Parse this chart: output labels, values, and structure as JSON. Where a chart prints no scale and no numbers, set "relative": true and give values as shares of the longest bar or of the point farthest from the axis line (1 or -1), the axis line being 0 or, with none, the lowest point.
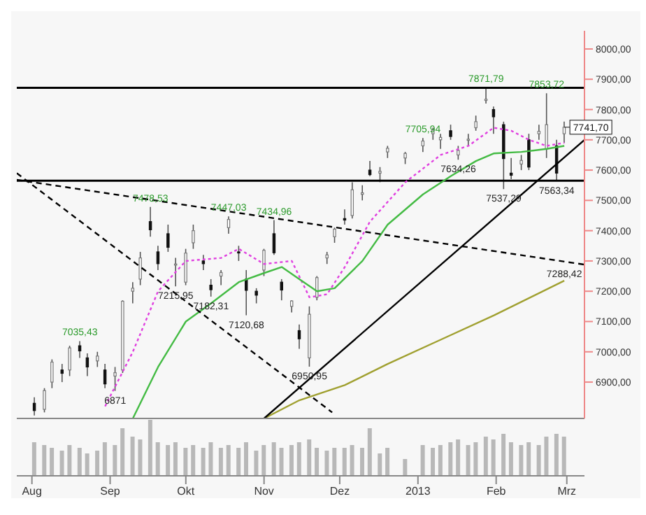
{
  "chart_data": [
    {
      "type": "candlestick",
      "x": [
        "2012-08-02",
        "2012-08-06",
        "2012-08-09",
        "2012-08-13",
        "2012-08-16",
        "2012-08-20",
        "2012-08-23",
        "2012-08-27",
        "2012-08-30",
        "2012-09-03",
        "2012-09-06",
        "2012-09-10",
        "2012-09-13",
        "2012-09-17",
        "2012-09-20",
        "2012-09-24",
        "2012-09-27",
        "2012-10-01",
        "2012-10-04",
        "2012-10-08",
        "2012-10-11",
        "2012-10-15",
        "2012-10-18",
        "2012-10-22",
        "2012-10-25",
        "2012-10-29",
        "2012-11-01",
        "2012-11-05",
        "2012-11-08",
        "2012-11-12",
        "2012-11-15",
        "2012-11-19",
        "2012-11-22",
        "2012-11-26",
        "2012-11-29",
        "2012-12-03",
        "2012-12-06",
        "2012-12-10",
        "2012-12-13",
        "2012-12-17",
        "2012-12-20",
        "2012-12-27",
        "2013-01-03",
        "2013-01-07",
        "2013-01-10",
        "2013-01-14",
        "2013-01-17",
        "2013-01-21",
        "2013-01-24",
        "2013-01-28",
        "2013-01-31",
        "2013-02-04",
        "2013-02-07",
        "2013-02-11",
        "2013-02-14",
        "2013-02-18",
        "2013-02-21",
        "2013-02-25",
        "2013-02-28"
      ],
      "ohlc": [
        [
          6830,
          6850,
          6790,
          6806
        ],
        [
          6810,
          6880,
          6800,
          6872
        ],
        [
          6900,
          6975,
          6880,
          6966
        ],
        [
          6940,
          6960,
          6900,
          6929
        ],
        [
          6940,
          7020,
          6920,
          7013
        ],
        [
          7020,
          7035.43,
          6980,
          7003
        ],
        [
          6980,
          6995,
          6920,
          6950
        ],
        [
          6970,
          7000,
          6950,
          6986
        ],
        [
          6940,
          6960,
          6880,
          6894
        ],
        [
          6920,
          6950,
          6871,
          6931
        ],
        [
          6940,
          7170,
          6930,
          7167
        ],
        [
          7200,
          7230,
          7160,
          7210
        ],
        [
          7240,
          7330,
          7220,
          7310
        ],
        [
          7430,
          7478.53,
          7380,
          7403
        ],
        [
          7330,
          7350,
          7270,
          7291
        ],
        [
          7390,
          7420,
          7330,
          7345
        ],
        [
          7290,
          7310,
          7215.95,
          7290
        ],
        [
          7230,
          7340,
          7220,
          7326
        ],
        [
          7360,
          7420,
          7340,
          7400
        ],
        [
          7300,
          7320,
          7270,
          7291
        ],
        [
          7220,
          7240,
          7182.31,
          7205
        ],
        [
          7250,
          7270,
          7220,
          7262
        ],
        [
          7410,
          7447.03,
          7390,
          7437
        ],
        [
          7330,
          7350,
          7300,
          7328
        ],
        [
          7240,
          7270,
          7120.68,
          7203
        ],
        [
          7200,
          7210,
          7160,
          7187
        ],
        [
          7270,
          7340,
          7250,
          7335
        ],
        [
          7390,
          7434.96,
          7320,
          7327
        ],
        [
          7230,
          7240,
          7170,
          7204
        ],
        [
          7150,
          7170,
          7130,
          7168
        ],
        [
          7070,
          7090,
          7010,
          7043
        ],
        [
          6980,
          7150,
          6950.95,
          7124
        ],
        [
          7180,
          7250,
          7170,
          7245
        ],
        [
          7310,
          7330,
          7290,
          7320
        ],
        [
          7380,
          7410,
          7360,
          7405
        ],
        [
          7440,
          7470,
          7420,
          7435
        ],
        [
          7450,
          7560,
          7440,
          7535
        ],
        [
          7520,
          7550,
          7500,
          7525
        ],
        [
          7600,
          7630,
          7580,
          7585
        ],
        [
          7590,
          7610,
          7560,
          7596
        ],
        [
          7660,
          7680,
          7640,
          7672
        ],
        [
          7640,
          7660,
          7620,
          7655
        ],
        [
          7680,
          7705.94,
          7660,
          7696
        ],
        [
          7720,
          7740,
          7700,
          7732
        ],
        [
          7700,
          7720,
          7670,
          7708
        ],
        [
          7730,
          7750,
          7700,
          7711
        ],
        [
          7650,
          7680,
          7634.26,
          7665
        ],
        [
          7700,
          7720,
          7680,
          7702
        ],
        [
          7740,
          7780,
          7730,
          7760
        ],
        [
          7830,
          7871.79,
          7820,
          7834
        ],
        [
          7800,
          7810,
          7720,
          7776
        ],
        [
          7750,
          7760,
          7537.29,
          7638
        ],
        [
          7590,
          7640,
          7570,
          7583
        ],
        [
          7620,
          7650,
          7600,
          7632
        ],
        [
          7700,
          7720,
          7600,
          7610
        ],
        [
          7720,
          7750,
          7700,
          7728
        ],
        [
          7670,
          7853.72,
          7640,
          7750
        ],
        [
          7680,
          7700,
          7563.34,
          7590
        ],
        [
          7720,
          7760,
          7690,
          7741.7
        ]
      ],
      "series": [
        {
          "type": "line",
          "color": "#e040e0",
          "line_style": "dotted",
          "x": [
            "2012-08-30",
            "2012-09-10",
            "2012-09-20",
            "2012-10-01",
            "2012-10-15",
            "2012-10-22",
            "2012-11-01",
            "2012-11-12",
            "2012-11-19",
            "2012-11-26",
            "2012-12-03",
            "2012-12-13",
            "2012-12-27",
            "2013-01-10",
            "2013-01-21",
            "2013-01-31",
            "2013-02-07",
            "2013-02-14",
            "2013-02-21",
            "2013-02-28"
          ],
          "values": [
            6820,
            7000,
            7200,
            7300,
            7310,
            7340,
            7290,
            7300,
            7180,
            7190,
            7280,
            7430,
            7560,
            7650,
            7680,
            7740,
            7730,
            7700,
            7680,
            7690
          ]
        },
        {
          "type": "line",
          "color": "#44bb44",
          "line_style": "solid",
          "x": [
            "2012-09-10",
            "2012-09-20",
            "2012-10-01",
            "2012-10-11",
            "2012-10-22",
            "2012-11-01",
            "2012-11-08",
            "2012-11-15",
            "2012-11-22",
            "2012-11-29",
            "2012-12-10",
            "2012-12-20",
            "2013-01-03",
            "2013-01-14",
            "2013-01-24",
            "2013-01-31",
            "2013-02-11",
            "2013-02-21",
            "2013-02-28"
          ],
          "values": [
            6780,
            6950,
            7100,
            7160,
            7230,
            7260,
            7280,
            7240,
            7200,
            7210,
            7300,
            7420,
            7520,
            7580,
            7630,
            7655,
            7660,
            7670,
            7680
          ]
        },
        {
          "type": "line",
          "color": "#a0a030",
          "line_style": "solid",
          "x": [
            "2012-11-01",
            "2012-11-15",
            "2012-12-03",
            "2012-12-20",
            "2013-01-10",
            "2013-01-31",
            "2013-02-28"
          ],
          "values": [
            6780,
            6840,
            6890,
            6960,
            7040,
            7120,
            7235
          ]
        },
        {
          "type": "line",
          "color": "#000000",
          "line_style": "dashed",
          "x": [
            "2012-07-26",
            "2013-03-08"
          ],
          "values": [
            7568,
            7288
          ]
        },
        {
          "type": "line",
          "color": "#000000",
          "line_style": "dashed",
          "x": [
            "2012-07-26",
            "2012-11-28"
          ],
          "values": [
            7590,
            6800
          ]
        },
        {
          "type": "line",
          "color": "#000000",
          "line_style": "solid",
          "x": [
            "2012-11-01",
            "2013-03-08"
          ],
          "values": [
            6780,
            7700
          ]
        }
      ],
      "ref_lines": [
        {
          "axis": "y",
          "value": 7871.79,
          "label": null,
          "color": "#000000"
        },
        {
          "axis": "y",
          "value": 7565,
          "label": null,
          "color": "#000000"
        }
      ],
      "annotations": [
        {
          "text": "7035,43",
          "x": "2012-08-20",
          "y": 7035.43
        },
        {
          "text": "6871",
          "x": "2012-09-03",
          "y": 6871
        },
        {
          "text": "7478,53",
          "x": "2012-09-17",
          "y": 7478.53
        },
        {
          "text": "7215,95",
          "x": "2012-09-27",
          "y": 7215.95
        },
        {
          "text": "7182,31",
          "x": "2012-10-11",
          "y": 7182.31
        },
        {
          "text": "7447,03",
          "x": "2012-10-18",
          "y": 7447.03
        },
        {
          "text": "7120,68",
          "x": "2012-10-25",
          "y": 7120.68
        },
        {
          "text": "7434,96",
          "x": "2012-11-05",
          "y": 7434.96
        },
        {
          "text": "6950,95",
          "x": "2012-11-19",
          "y": 6950.95
        },
        {
          "text": "7705,94",
          "x": "2013-01-03",
          "y": 7705.94
        },
        {
          "text": "7634,26",
          "x": "2013-01-17",
          "y": 7634.26
        },
        {
          "text": "7871,79",
          "x": "2013-01-28",
          "y": 7871.79
        },
        {
          "text": "7537,29",
          "x": "2013-02-04",
          "y": 7537.29
        },
        {
          "text": "7853,72",
          "x": "2013-02-21",
          "y": 7853.72
        },
        {
          "text": "7563,34",
          "x": "2013-02-25",
          "y": 7563.34
        },
        {
          "text": "7288,42",
          "x": "2013-02-28",
          "y": 7288.42
        },
        {
          "text": "7741,70",
          "x": "2013-02-28",
          "y": 7741.7
        }
      ],
      "xlim": [
        "2012-07-26",
        "2013-03-08"
      ],
      "ylim": [
        6780,
        8060
      ],
      "yticks": [
        {
          "value": 6900,
          "label": "6900,00"
        },
        {
          "value": 7000,
          "label": "7000,00"
        },
        {
          "value": 7100,
          "label": "7100,00"
        },
        {
          "value": 7200,
          "label": "7200,00"
        },
        {
          "value": 7300,
          "label": "7300,00"
        },
        {
          "value": 7400,
          "label": "7400,00"
        },
        {
          "value": 7500,
          "label": "7500,00"
        },
        {
          "value": 7600,
          "label": "7600,00"
        },
        {
          "value": 7700,
          "label": "7700,00"
        },
        {
          "value": 7800,
          "label": "7800,00"
        },
        {
          "value": 7900,
          "label": "7900,00"
        },
        {
          "value": 8000,
          "label": "8000,00"
        }
      ],
      "tick_labels": "y"
    },
    {
      "type": "bar",
      "relative": true,
      "color": "#b8b8b8",
      "x": [
        "2012-08-02",
        "2012-08-06",
        "2012-08-09",
        "2012-08-13",
        "2012-08-16",
        "2012-08-20",
        "2012-08-23",
        "2012-08-27",
        "2012-08-30",
        "2012-09-03",
        "2012-09-06",
        "2012-09-10",
        "2012-09-13",
        "2012-09-17",
        "2012-09-20",
        "2012-09-24",
        "2012-09-27",
        "2012-10-01",
        "2012-10-04",
        "2012-10-08",
        "2012-10-11",
        "2012-10-15",
        "2012-10-18",
        "2012-10-22",
        "2012-10-25",
        "2012-10-29",
        "2012-11-01",
        "2012-11-05",
        "2012-11-08",
        "2012-11-12",
        "2012-11-15",
        "2012-11-19",
        "2012-11-22",
        "2012-11-26",
        "2012-11-29",
        "2012-12-03",
        "2012-12-06",
        "2012-12-10",
        "2012-12-13",
        "2012-12-17",
        "2012-12-20",
        "2012-12-27",
        "2013-01-03",
        "2013-01-07",
        "2013-01-10",
        "2013-01-14",
        "2013-01-17",
        "2013-01-21",
        "2013-01-24",
        "2013-01-28",
        "2013-01-31",
        "2013-02-04",
        "2013-02-07",
        "2013-02-11",
        "2013-02-14",
        "2013-02-18",
        "2013-02-21",
        "2013-02-25",
        "2013-02-28"
      ],
      "values": [
        0.6,
        0.55,
        0.5,
        0.45,
        0.55,
        0.5,
        0.4,
        0.45,
        0.6,
        0.55,
        0.85,
        0.7,
        0.65,
        1,
        0.6,
        0.55,
        0.6,
        0.5,
        0.55,
        0.5,
        0.6,
        0.5,
        0.55,
        0.5,
        0.6,
        0.45,
        0.55,
        0.6,
        0.5,
        0.55,
        0.6,
        0.65,
        0.5,
        0.45,
        0.5,
        0.5,
        0.55,
        0.5,
        0.85,
        0.4,
        0.5,
        0.3,
        0.55,
        0.5,
        0.55,
        0.6,
        0.65,
        0.55,
        0.6,
        0.7,
        0.65,
        0.75,
        0.6,
        0.55,
        0.6,
        0.55,
        0.7,
        0.75,
        0.7
      ],
      "xlim": [
        "2012-07-26",
        "2013-03-08"
      ],
      "xticks": [
        {
          "value": "2012-08-01",
          "label": "Aug"
        },
        {
          "value": "2012-09-01",
          "label": "Sep"
        },
        {
          "value": "2012-10-01",
          "label": "Okt"
        },
        {
          "value": "2012-11-01",
          "label": "Nov"
        },
        {
          "value": "2012-12-01",
          "label": "Dez"
        },
        {
          "value": "2013-01-01",
          "label": "2013"
        },
        {
          "value": "2013-02-01",
          "label": "Feb"
        },
        {
          "value": "2013-03-01",
          "label": "Mrz"
        }
      ],
      "tick_labels": "x"
    }
  ]
}
